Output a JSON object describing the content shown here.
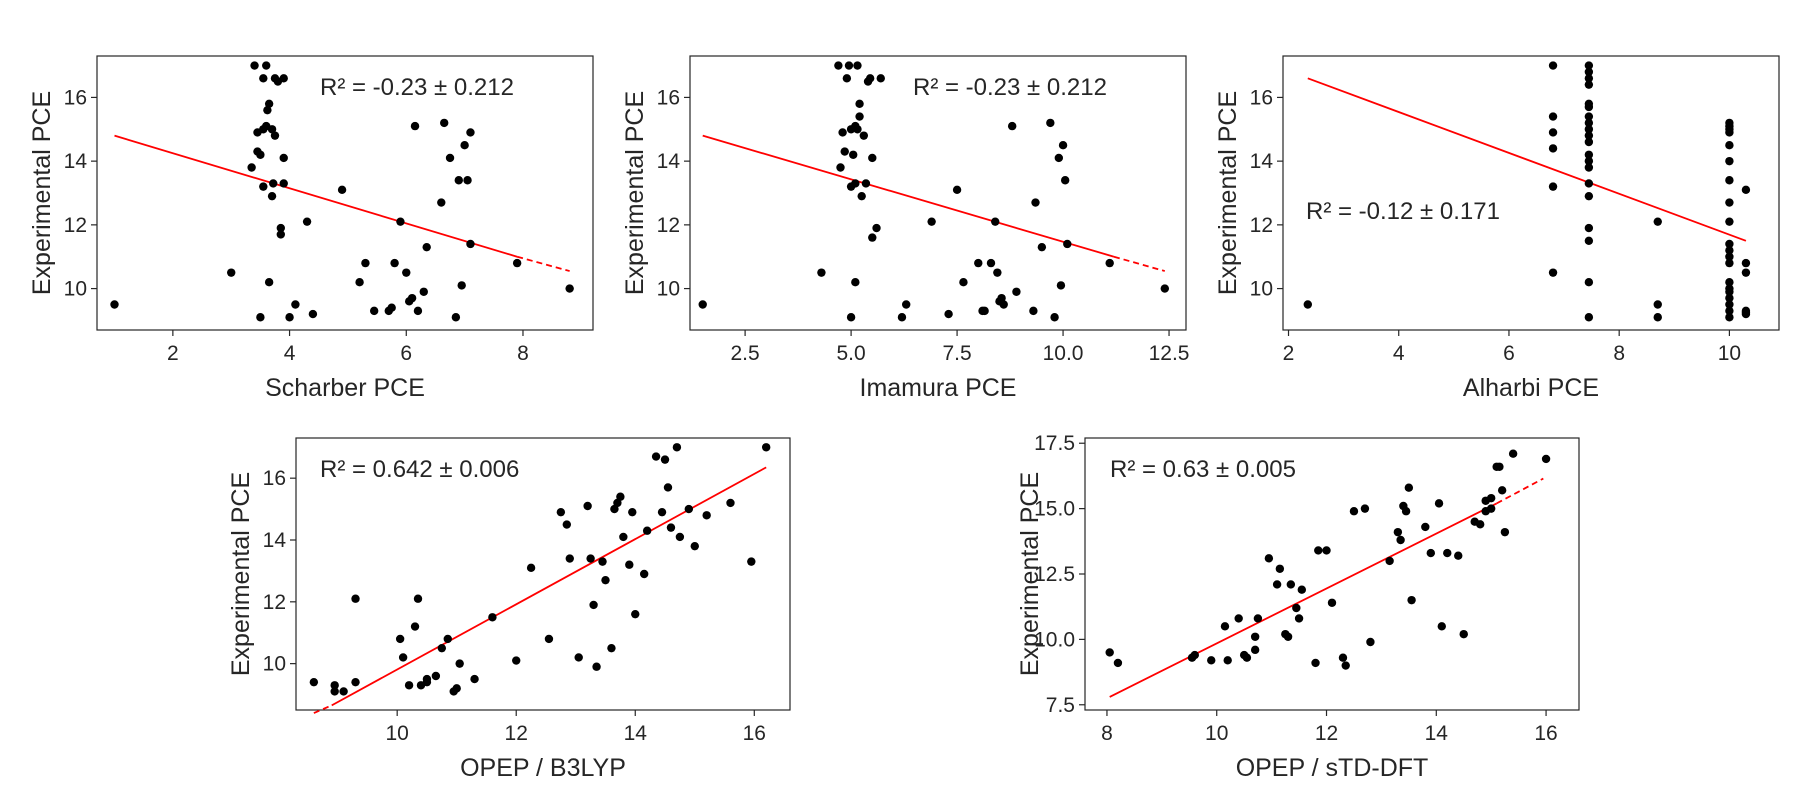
{
  "chart_data": [
    {
      "type": "scatter",
      "xlabel": "Scharber PCE",
      "ylabel": "Experimental PCE",
      "annotation": "R² = -0.23 ± 0.212",
      "xlim": [
        0.7,
        9.2
      ],
      "ylim": [
        8.7,
        17.3
      ],
      "xticks": [
        2,
        4,
        6,
        8
      ],
      "yticks": [
        10,
        12,
        14,
        16
      ],
      "fit": {
        "x": [
          1.0,
          7.9
        ],
        "y": [
          14.8,
          11.0
        ],
        "dashed_to": [
          8.8,
          10.55
        ],
        "color": "#ff0000"
      },
      "points": {
        "x": [
          1.0,
          3.0,
          3.35,
          3.4,
          3.45,
          3.45,
          3.5,
          3.5,
          3.55,
          3.55,
          3.55,
          3.6,
          3.6,
          3.62,
          3.65,
          3.65,
          3.7,
          3.7,
          3.72,
          3.75,
          3.75,
          3.8,
          3.85,
          3.85,
          3.9,
          3.9,
          3.9,
          4.0,
          4.1,
          4.3,
          4.4,
          4.9,
          5.2,
          5.3,
          5.45,
          5.7,
          5.75,
          5.8,
          5.9,
          6.0,
          6.05,
          6.1,
          6.15,
          6.2,
          6.3,
          6.35,
          6.6,
          6.65,
          6.75,
          6.85,
          6.9,
          6.95,
          7.0,
          7.05,
          7.1,
          7.1,
          7.9,
          8.8
        ],
        "y": [
          9.5,
          10.5,
          13.8,
          17.0,
          14.3,
          14.9,
          9.1,
          14.2,
          16.6,
          15.0,
          13.2,
          17.0,
          15.1,
          15.6,
          10.2,
          15.8,
          12.9,
          15.0,
          13.3,
          14.8,
          16.6,
          16.5,
          11.7,
          11.9,
          16.6,
          13.3,
          14.1,
          9.1,
          9.5,
          12.1,
          9.2,
          13.1,
          10.2,
          10.8,
          9.3,
          9.3,
          9.4,
          10.8,
          12.1,
          10.5,
          9.6,
          9.7,
          15.1,
          9.3,
          9.9,
          11.3,
          12.7,
          15.2,
          14.1,
          9.1,
          13.4,
          10.1,
          14.5,
          13.4,
          11.4,
          14.9,
          10.8,
          10.0
        ]
      }
    },
    {
      "type": "scatter",
      "xlabel": "Imamura PCE",
      "ylabel": "Experimental PCE",
      "annotation": "R² = -0.23 ± 0.212",
      "xlim": [
        1.2,
        12.9
      ],
      "ylim": [
        8.7,
        17.3
      ],
      "xticks": [
        2.5,
        5.0,
        7.5,
        10.0,
        12.5
      ],
      "tick_labels": [
        "2.5",
        "5.0",
        "7.5",
        "10.0",
        "12.5"
      ],
      "yticks": [
        10,
        12,
        14,
        16
      ],
      "fit": {
        "x": [
          1.5,
          11.2
        ],
        "y": [
          14.8,
          11.0
        ],
        "dashed_to": [
          12.4,
          10.55
        ],
        "color": "#ff0000"
      },
      "points": {
        "x": [
          1.5,
          4.3,
          4.7,
          4.75,
          4.8,
          4.85,
          4.9,
          4.95,
          5.0,
          5.0,
          5.0,
          5.05,
          5.1,
          5.1,
          5.1,
          5.15,
          5.15,
          5.2,
          5.2,
          5.25,
          5.3,
          5.35,
          5.4,
          5.45,
          5.5,
          5.5,
          5.6,
          5.7,
          6.2,
          6.3,
          6.9,
          7.3,
          7.5,
          7.65,
          8.0,
          8.1,
          8.15,
          8.3,
          8.4,
          8.45,
          8.5,
          8.55,
          8.6,
          8.8,
          8.9,
          9.3,
          9.35,
          9.5,
          9.7,
          9.8,
          9.9,
          9.95,
          10.0,
          10.05,
          10.1,
          11.1,
          12.4
        ],
        "y": [
          9.5,
          10.5,
          17.0,
          13.8,
          14.9,
          14.3,
          16.6,
          17.0,
          15.0,
          13.2,
          9.1,
          14.2,
          13.3,
          15.1,
          10.2,
          17.0,
          15.0,
          15.4,
          15.8,
          12.9,
          14.8,
          13.3,
          16.5,
          16.6,
          14.1,
          11.6,
          11.9,
          16.6,
          9.1,
          9.5,
          12.1,
          9.2,
          13.1,
          10.2,
          10.8,
          9.3,
          9.3,
          10.8,
          12.1,
          10.5,
          9.6,
          9.7,
          9.5,
          15.1,
          9.9,
          9.3,
          12.7,
          11.3,
          15.2,
          9.1,
          14.1,
          10.1,
          14.5,
          13.4,
          11.4,
          10.8,
          10.0
        ]
      }
    },
    {
      "type": "scatter",
      "xlabel": "Alharbi PCE",
      "ylabel": "Experimental PCE",
      "annotation": "R² = -0.12 ± 0.171",
      "xlim": [
        1.9,
        10.9
      ],
      "ylim": [
        8.7,
        17.3
      ],
      "xticks": [
        2,
        4,
        6,
        8,
        10
      ],
      "yticks": [
        10,
        12,
        14,
        16
      ],
      "fit": {
        "x": [
          2.35,
          10.3
        ],
        "y": [
          16.6,
          11.5
        ],
        "dashed_to": null,
        "color": "#ff0000"
      },
      "points": {
        "x": [
          2.35,
          6.8,
          6.8,
          6.8,
          6.8,
          6.8,
          6.8,
          7.45,
          7.45,
          7.45,
          7.45,
          7.45,
          7.45,
          7.45,
          7.45,
          7.45,
          7.45,
          7.45,
          7.45,
          7.45,
          7.45,
          7.45,
          7.45,
          7.45,
          7.45,
          7.45,
          7.45,
          8.7,
          8.7,
          8.7,
          10.0,
          10.0,
          10.0,
          10.0,
          10.0,
          10.0,
          10.0,
          10.0,
          10.0,
          10.0,
          10.0,
          10.0,
          10.0,
          10.0,
          10.0,
          10.0,
          10.0,
          10.0,
          10.0,
          10.0,
          10.3,
          10.3,
          10.3,
          10.3,
          10.3,
          10.3
        ],
        "y": [
          9.5,
          17.0,
          15.4,
          14.9,
          14.4,
          13.2,
          10.5,
          17.0,
          16.8,
          16.6,
          16.4,
          15.8,
          15.4,
          15.0,
          14.6,
          14.2,
          13.8,
          13.3,
          12.9,
          11.9,
          11.5,
          10.2,
          9.1,
          15.7,
          15.2,
          14.8,
          14.0,
          12.1,
          9.5,
          9.1,
          15.2,
          15.0,
          14.9,
          14.5,
          13.4,
          12.7,
          12.1,
          11.4,
          11.2,
          10.8,
          10.2,
          9.9,
          9.7,
          9.5,
          9.3,
          9.1,
          14.0,
          15.1,
          11.0,
          10.0,
          13.1,
          10.8,
          10.5,
          9.3,
          9.2,
          9.25
        ]
      }
    },
    {
      "type": "scatter",
      "xlabel": "OPEP / B3LYP",
      "ylabel": "Experimental PCE",
      "annotation": "R² = 0.642 ± 0.006",
      "xlim": [
        8.3,
        16.6
      ],
      "ylim": [
        8.5,
        17.3
      ],
      "xticks": [
        10,
        12,
        14,
        16
      ],
      "yticks": [
        10,
        12,
        14,
        16
      ],
      "fit": {
        "x": [
          8.9,
          16.2
        ],
        "y": [
          8.65,
          16.35
        ],
        "dashed_start": [
          8.6,
          8.4
        ],
        "color": "#ff0000"
      },
      "points": {
        "x": [
          8.6,
          8.95,
          8.95,
          9.1,
          9.3,
          9.3,
          10.05,
          10.1,
          10.2,
          10.3,
          10.35,
          10.4,
          10.5,
          10.5,
          10.65,
          10.75,
          10.85,
          10.95,
          11.0,
          11.05,
          11.3,
          11.6,
          12.0,
          12.25,
          12.55,
          12.75,
          12.85,
          12.9,
          13.05,
          13.2,
          13.25,
          13.3,
          13.35,
          13.45,
          13.5,
          13.6,
          13.65,
          13.7,
          13.75,
          13.8,
          13.9,
          13.95,
          14.0,
          14.15,
          14.2,
          14.35,
          14.45,
          14.5,
          14.55,
          14.6,
          14.7,
          14.75,
          14.9,
          15.0,
          15.2,
          15.6,
          15.95,
          16.2
        ],
        "y": [
          9.4,
          9.1,
          9.3,
          9.1,
          9.4,
          12.1,
          10.8,
          10.2,
          9.3,
          11.2,
          12.1,
          9.3,
          9.4,
          9.5,
          9.6,
          10.5,
          10.8,
          9.1,
          9.2,
          10.0,
          9.5,
          11.5,
          10.1,
          13.1,
          10.8,
          14.9,
          14.5,
          13.4,
          10.2,
          15.1,
          13.4,
          11.9,
          9.9,
          13.3,
          12.7,
          10.5,
          15.0,
          15.2,
          15.4,
          14.1,
          13.2,
          14.9,
          11.6,
          12.9,
          14.3,
          16.7,
          14.9,
          16.6,
          15.7,
          14.4,
          17.0,
          14.1,
          15.0,
          13.8,
          14.8,
          15.2,
          13.3,
          17.0
        ]
      }
    },
    {
      "type": "scatter",
      "xlabel": "OPEP / sTD-DFT",
      "ylabel": "Experimental PCE",
      "annotation": "R² = 0.63 ± 0.005",
      "xlim": [
        7.6,
        16.6
      ],
      "ylim": [
        7.3,
        17.7
      ],
      "xticks": [
        8,
        10,
        12,
        14,
        16
      ],
      "yticks": [
        7.5,
        10.0,
        12.5,
        15.0,
        17.5
      ],
      "tick_labels": [
        "7.5",
        "10.0",
        "12.5",
        "15.0",
        "17.5"
      ],
      "fit": {
        "x": [
          8.05,
          15.1
        ],
        "y": [
          7.8,
          15.2
        ],
        "dashed_to": [
          15.95,
          16.15
        ],
        "color": "#ff0000"
      },
      "points": {
        "x": [
          8.05,
          8.2,
          9.55,
          9.6,
          9.9,
          10.15,
          10.2,
          10.4,
          10.5,
          10.55,
          10.7,
          10.7,
          10.75,
          10.95,
          11.1,
          11.15,
          11.25,
          11.3,
          11.35,
          11.45,
          11.5,
          11.55,
          11.8,
          11.85,
          12.0,
          12.1,
          12.3,
          12.35,
          12.5,
          12.7,
          12.8,
          13.15,
          13.3,
          13.35,
          13.4,
          13.45,
          13.5,
          13.55,
          13.8,
          13.9,
          14.05,
          14.1,
          14.2,
          14.4,
          14.5,
          14.7,
          14.8,
          14.9,
          14.9,
          15.0,
          15.0,
          15.1,
          15.15,
          15.2,
          15.25,
          15.4,
          16.0
        ],
        "y": [
          9.5,
          9.1,
          9.3,
          9.4,
          9.2,
          10.5,
          9.2,
          10.8,
          9.4,
          9.3,
          10.1,
          9.6,
          10.8,
          13.1,
          12.1,
          12.7,
          10.2,
          10.1,
          12.1,
          11.2,
          10.8,
          11.9,
          9.1,
          13.4,
          13.4,
          11.4,
          9.3,
          9.0,
          14.9,
          15.0,
          9.9,
          13.0,
          14.1,
          13.8,
          15.1,
          14.9,
          15.8,
          11.5,
          14.3,
          13.3,
          15.2,
          10.5,
          13.3,
          13.2,
          10.2,
          14.5,
          14.4,
          14.9,
          15.3,
          15.0,
          15.4,
          16.6,
          16.6,
          15.7,
          14.1,
          17.1,
          16.9
        ]
      }
    }
  ]
}
